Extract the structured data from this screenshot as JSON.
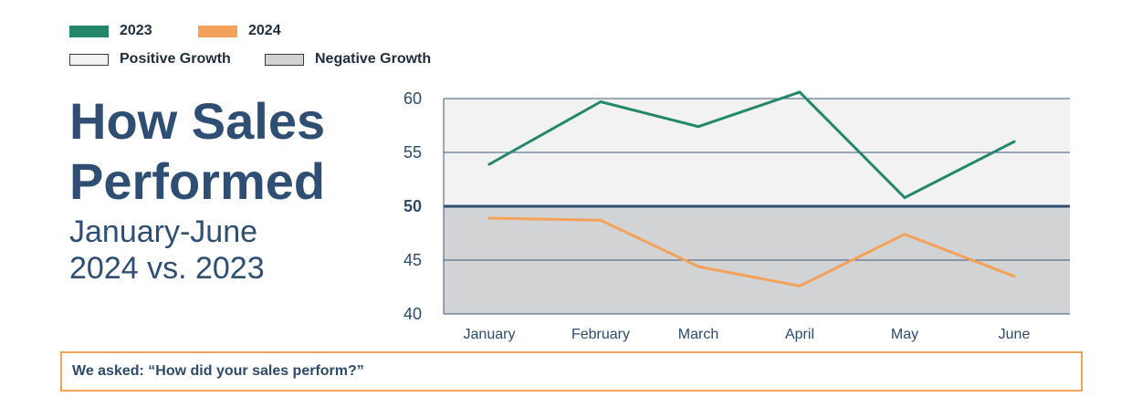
{
  "legend": {
    "items": [
      {
        "label": "2023",
        "color": "#23876b",
        "kind": "line"
      },
      {
        "label": "2024",
        "color": "#f4a259",
        "kind": "line"
      },
      {
        "label": "Positive Growth",
        "color": "#f2f2f2",
        "kind": "band"
      },
      {
        "label": "Negative Growth",
        "color": "#d2d3d4",
        "kind": "band"
      }
    ]
  },
  "heading": {
    "title_line1": "How Sales",
    "title_line2": "Performed",
    "subtitle_line1": "January-June",
    "subtitle_line2": "2024 vs. 2023"
  },
  "question": "We asked: “How did your sales perform?”",
  "chart_data": {
    "type": "line",
    "categories": [
      "January",
      "February",
      "March",
      "April",
      "May",
      "June"
    ],
    "series": [
      {
        "name": "2023",
        "color": "#23876b",
        "values": [
          53.9,
          59.7,
          57.4,
          60.6,
          50.8,
          56.0
        ]
      },
      {
        "name": "2024",
        "color": "#f4a259",
        "values": [
          48.9,
          48.7,
          44.4,
          42.6,
          47.4,
          43.5
        ]
      }
    ],
    "ylim": [
      40,
      60
    ],
    "yticks": [
      40,
      45,
      50,
      55,
      60
    ],
    "ytick_labels": [
      "40",
      "45",
      "50",
      "55",
      "60"
    ],
    "baseline": 50,
    "bands": [
      {
        "label": "Positive Growth",
        "from": 50,
        "to": 60,
        "color": "#f2f2f2"
      },
      {
        "label": "Negative Growth",
        "from": 40,
        "to": 50,
        "color": "#d2d3d4"
      }
    ],
    "grid": true,
    "title": "",
    "xlabel": "",
    "ylabel": ""
  }
}
